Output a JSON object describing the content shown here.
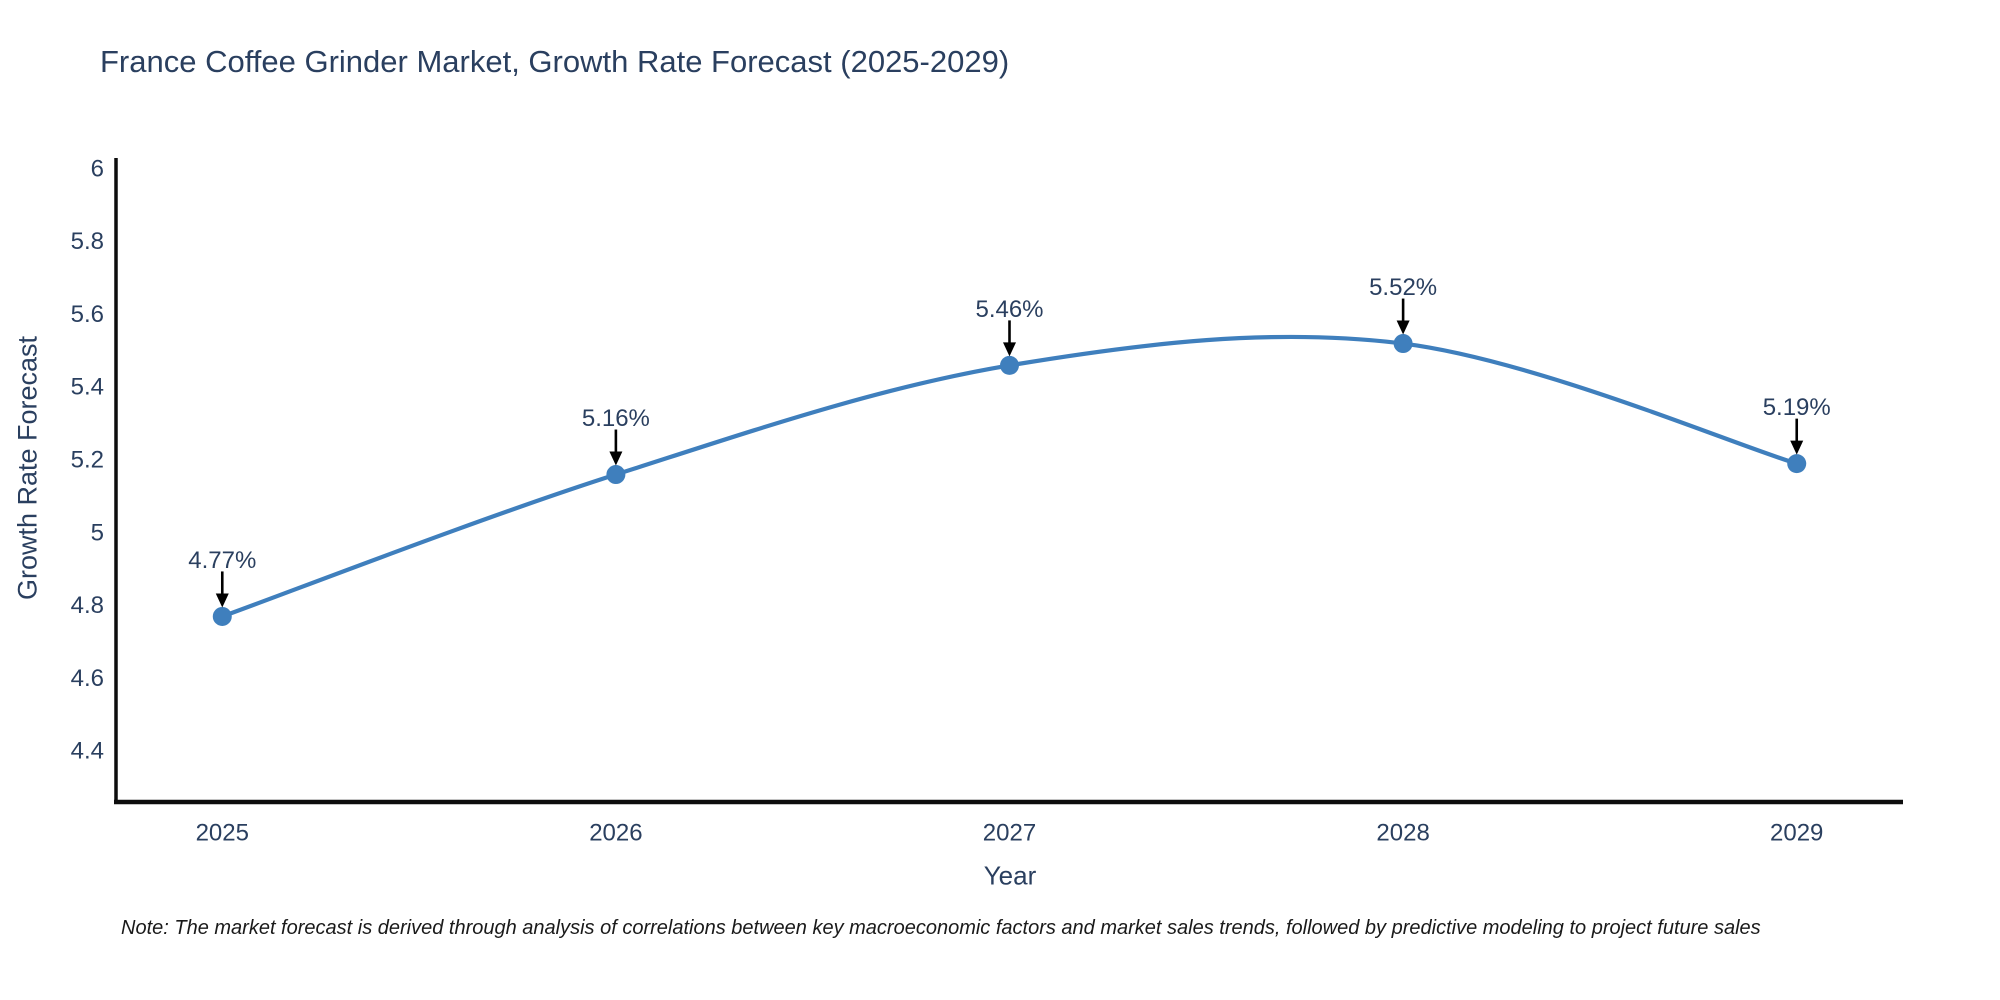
{
  "chart_data": {
    "type": "line",
    "title": "France Coffee Grinder Market, Growth Rate Forecast (2025-2029)",
    "xlabel": "Year",
    "ylabel": "Growth Rate Forecast",
    "categories": [
      2025,
      2026,
      2027,
      2028,
      2029
    ],
    "values": [
      4.77,
      5.16,
      5.46,
      5.52,
      5.19
    ],
    "point_labels": [
      "4.77%",
      "5.16%",
      "5.46%",
      "5.52%",
      "5.19%"
    ],
    "line_shape": "spline",
    "grid": false,
    "legend_position": "none",
    "yticks": [
      6,
      5.8,
      5.6,
      5.4,
      5.2,
      5,
      4.8,
      4.6,
      4.4
    ],
    "ytick_labels": [
      "6",
      "5.8",
      "5.6",
      "5.4",
      "5.2",
      "5",
      "4.8",
      "4.6",
      "4.4"
    ],
    "xtick_labels": [
      "2025",
      "2026",
      "2027",
      "2028",
      "2029"
    ],
    "ylim": [
      4.26,
      6.03
    ],
    "xlim": [
      2024.73,
      2029.27
    ],
    "colors": {
      "line": "#3f7fbd",
      "marker": "#3f7fbd",
      "annotation_arrow": "#000000",
      "axis_line": "#0d0d0d",
      "label_text": "#2a3f5f",
      "note_text": "#1a1a1a",
      "background": "#ffffff"
    }
  },
  "note": {
    "text": "Note: The market forecast is derived through analysis of correlations between key macroeconomic factors and market sales trends, followed by predictive modeling to project future sales"
  }
}
